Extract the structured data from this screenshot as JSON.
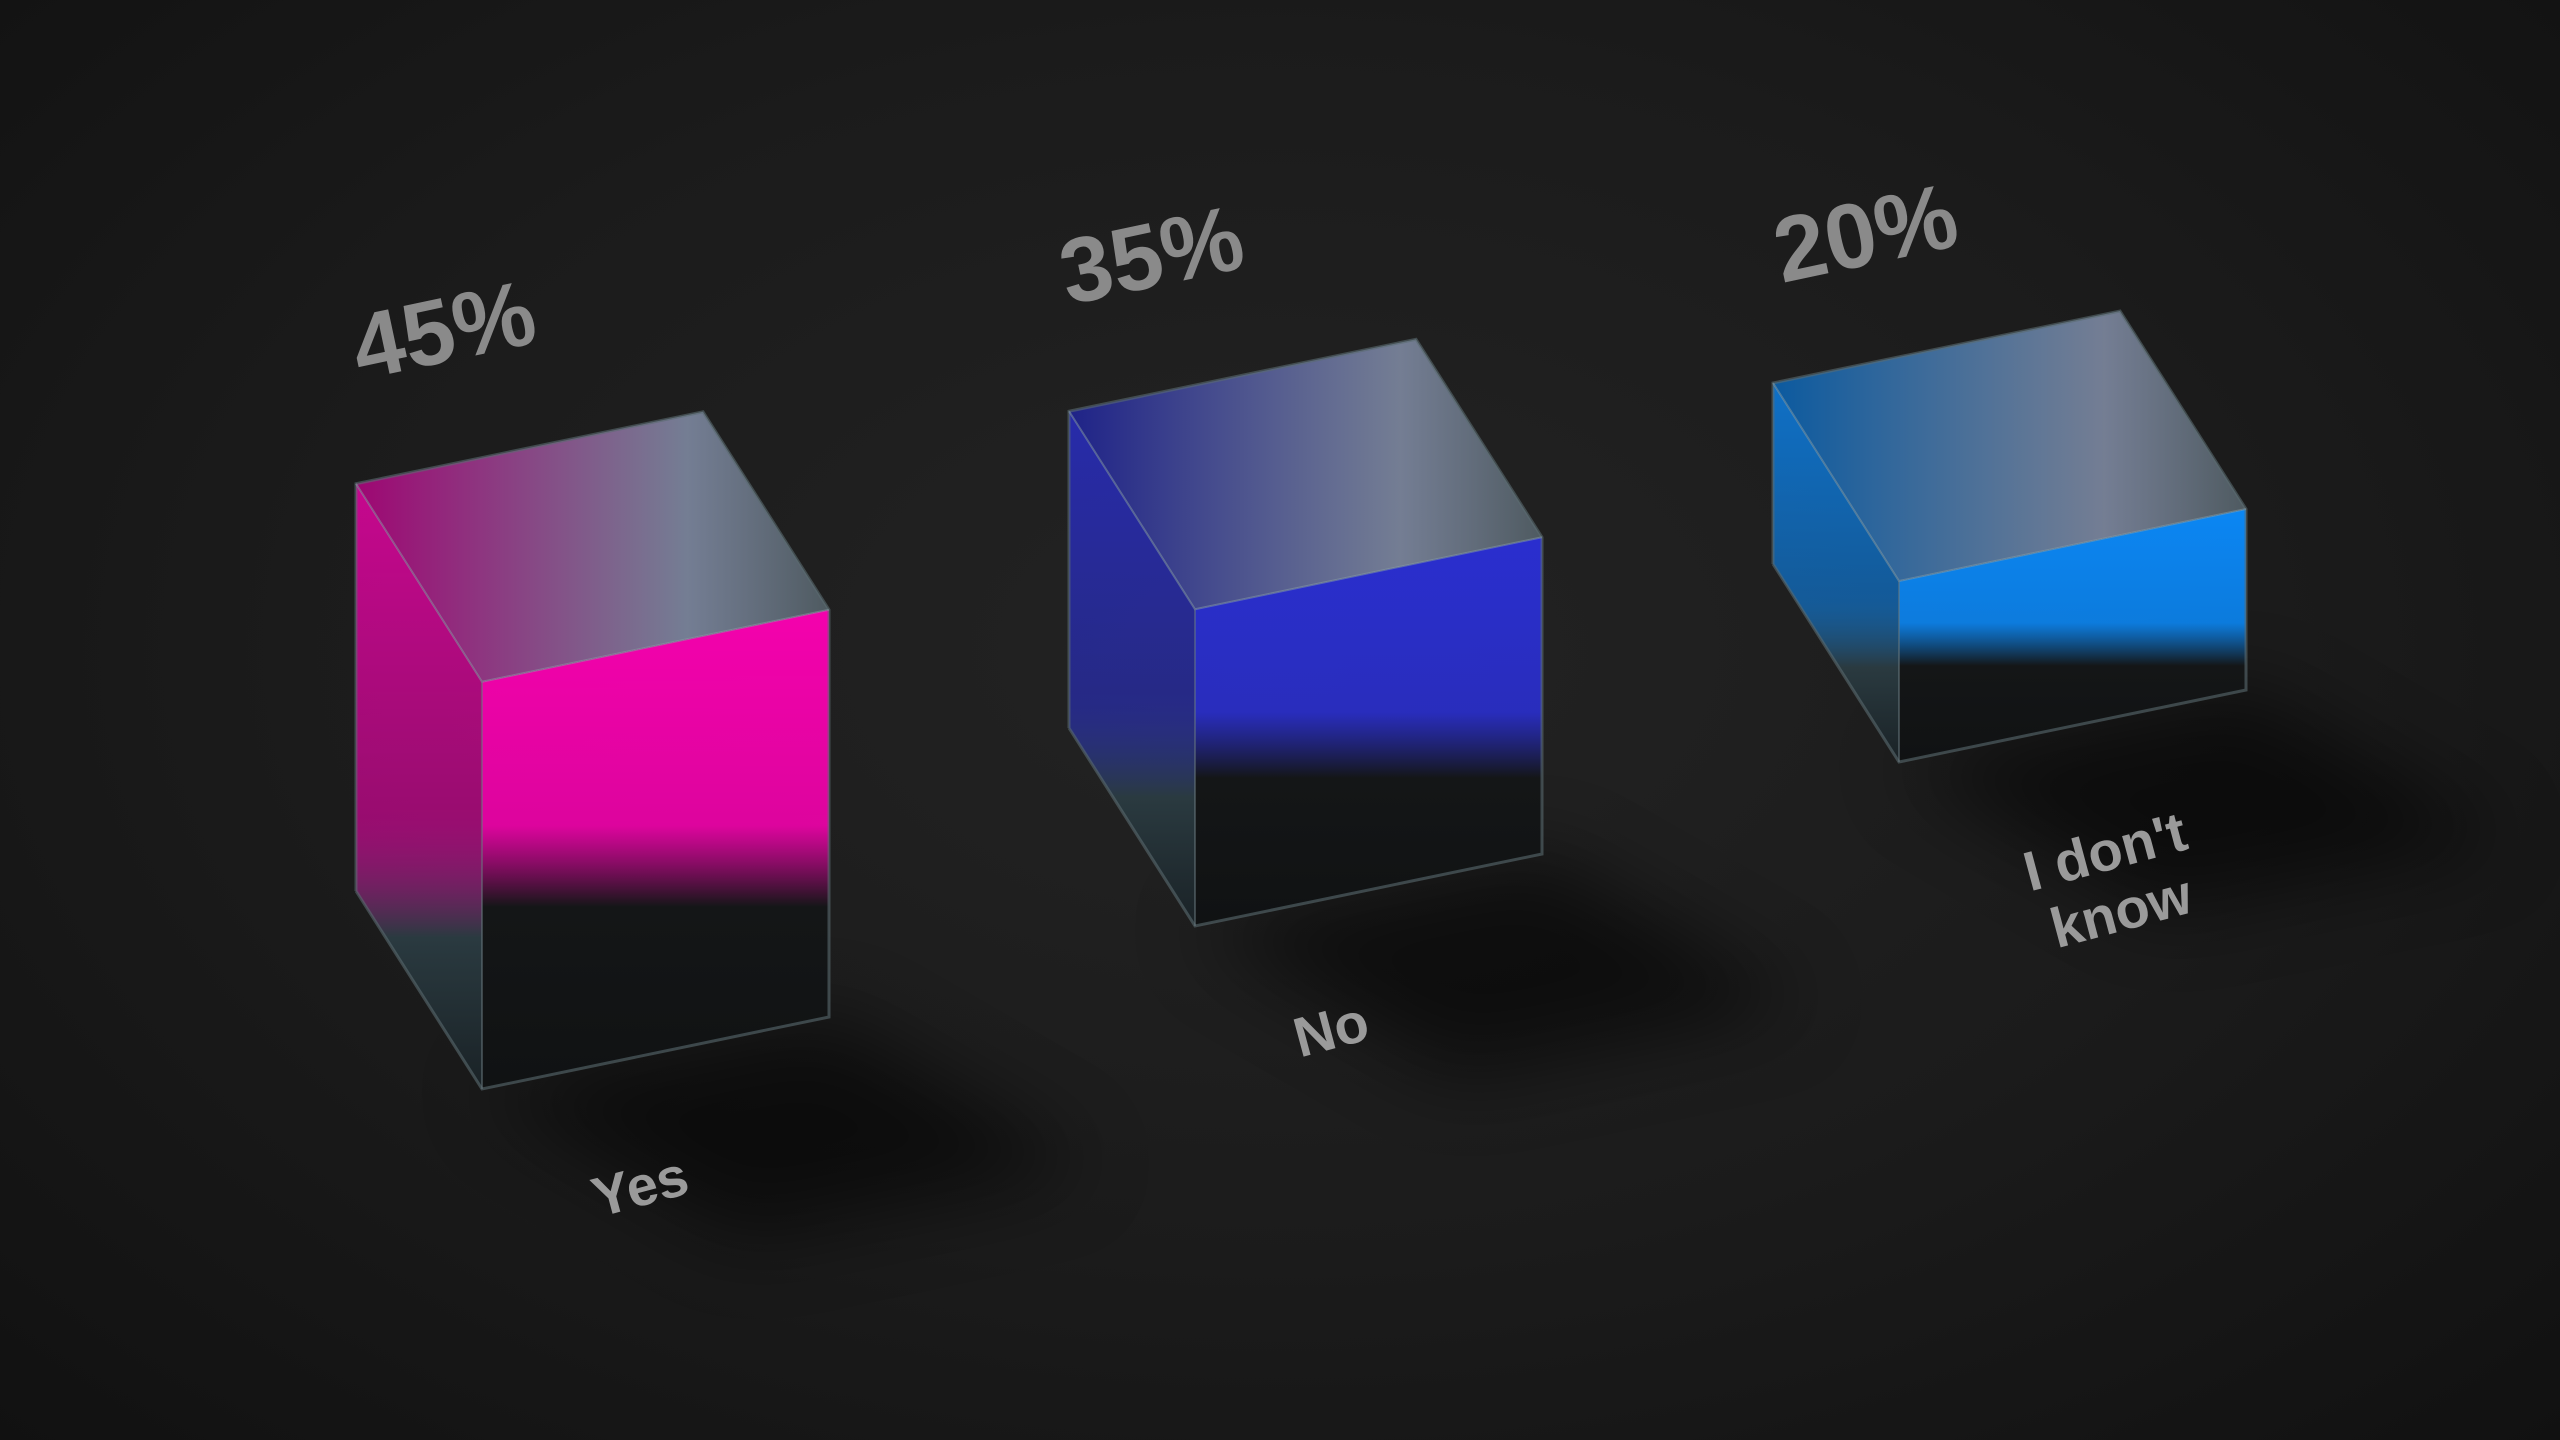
{
  "chart_data": {
    "type": "bar",
    "style": "3d-glass-cubes",
    "categories": [
      "Yes",
      "No",
      "I don't know"
    ],
    "values": [
      45,
      35,
      20
    ],
    "value_labels": [
      "45%",
      "35%",
      "20%"
    ],
    "colors": [
      "#ff00b4",
      "#2a2fd8",
      "#0a8cff"
    ],
    "title": "",
    "xlabel": "",
    "ylabel": "",
    "grid": false,
    "legend": "none"
  }
}
